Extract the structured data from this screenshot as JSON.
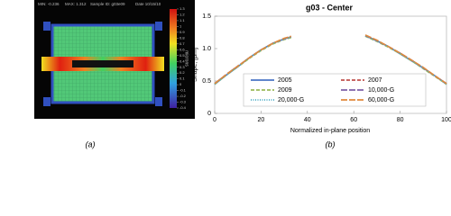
{
  "figure_a": {
    "header": [
      "MIN: -0.236",
      "MAX: 1.312",
      "Sample ID: g03e09",
      "Date 10/15/10"
    ],
    "colorbar_ticks": [
      1.3,
      1.2,
      1.1,
      1,
      0.9,
      0.8,
      0.7,
      0.6,
      0.5,
      0.4,
      0.3,
      0.2,
      0.1,
      0,
      -0.1,
      -0.2,
      -0.3,
      -0.4
    ],
    "colorbar_lim": [
      -0.4,
      1.3
    ],
    "colorbar_unit": "microns",
    "caption": "(a)"
  },
  "chart_data": {
    "type": "line",
    "title": "g03 - Center",
    "ylabel": "Shape, [μm]",
    "xlabel": "Normalized in-plane position",
    "caption": "(b)",
    "x": [
      0,
      5,
      10,
      15,
      20,
      25,
      30,
      33,
      50,
      65,
      70,
      75,
      80,
      85,
      90,
      95,
      100
    ],
    "series": [
      {
        "name": "2005",
        "color": "#4a74c4",
        "dash": "solid",
        "values": [
          0.45,
          0.59,
          0.72,
          0.86,
          0.98,
          1.08,
          1.15,
          1.18,
          null,
          1.2,
          1.12,
          1.03,
          0.92,
          0.81,
          0.7,
          0.58,
          0.45
        ]
      },
      {
        "name": "2007",
        "color": "#c0504d",
        "dash": "dashed",
        "values": [
          0.46,
          0.6,
          0.73,
          0.86,
          0.98,
          1.08,
          1.15,
          1.18,
          null,
          1.2,
          1.12,
          1.03,
          0.93,
          0.82,
          0.7,
          0.58,
          0.46
        ]
      },
      {
        "name": "2009",
        "color": "#9bbb59",
        "dash": "dashed",
        "values": [
          0.45,
          0.59,
          0.72,
          0.85,
          0.97,
          1.07,
          1.14,
          1.17,
          null,
          1.19,
          1.11,
          1.02,
          0.92,
          0.81,
          0.69,
          0.57,
          0.45
        ]
      },
      {
        "name": "10,000-G",
        "color": "#7f61a8",
        "dash": "longdash",
        "values": [
          0.46,
          0.6,
          0.73,
          0.86,
          0.98,
          1.08,
          1.15,
          1.18,
          null,
          1.2,
          1.12,
          1.03,
          0.93,
          0.82,
          0.7,
          0.58,
          0.46
        ]
      },
      {
        "name": "20,000-G",
        "color": "#4bacc6",
        "dash": "dotted",
        "values": [
          0.45,
          0.59,
          0.72,
          0.86,
          0.98,
          1.08,
          1.15,
          1.18,
          null,
          1.2,
          1.12,
          1.03,
          0.92,
          0.81,
          0.7,
          0.58,
          0.45
        ]
      },
      {
        "name": "60,000-G",
        "color": "#e08a3c",
        "dash": "longdash",
        "values": [
          0.46,
          0.6,
          0.73,
          0.86,
          0.98,
          1.08,
          1.16,
          1.19,
          null,
          1.21,
          1.13,
          1.03,
          0.93,
          0.82,
          0.71,
          0.58,
          0.46
        ]
      }
    ],
    "xlim": [
      0,
      100
    ],
    "xticks": [
      0,
      20,
      40,
      60,
      80,
      100
    ],
    "ylim": [
      0,
      1.5
    ],
    "yticks": [
      0,
      0.5,
      {
        "value": 1,
        "label": "1.0"
      },
      1.5
    ],
    "grid": false,
    "legend": "center"
  }
}
